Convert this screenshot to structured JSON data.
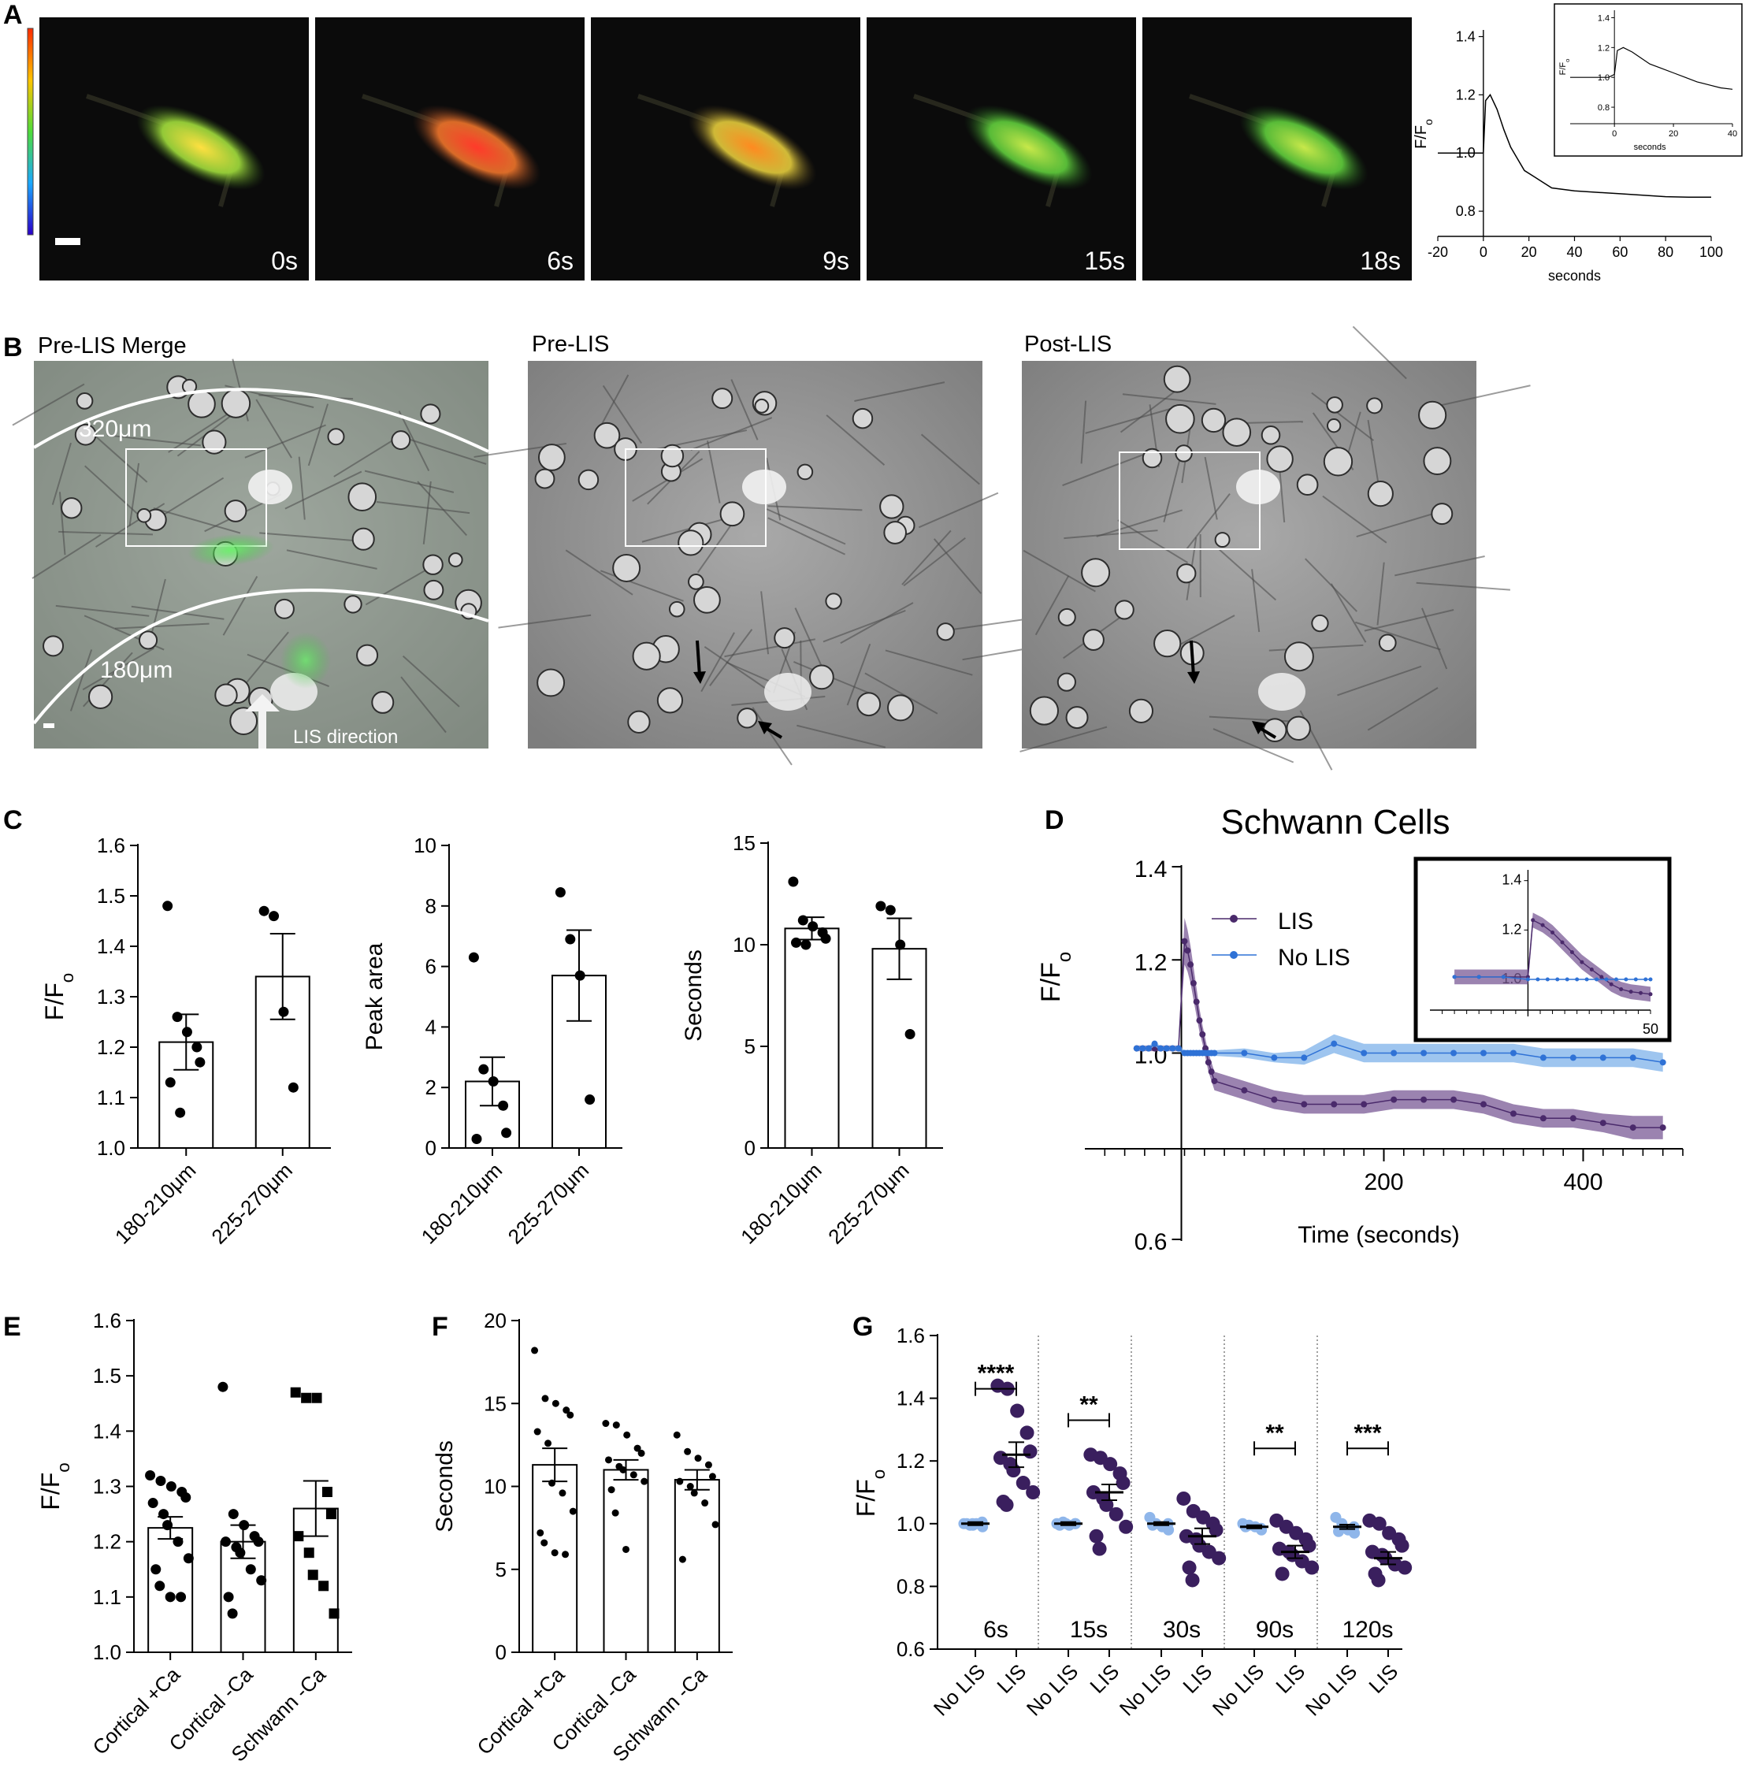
{
  "panels": {
    "A": {
      "letter": "A",
      "frames": [
        "0s",
        "6s",
        "9s",
        "15s",
        "18s"
      ],
      "colors": {
        "frame_bg": "#0b0b0b",
        "cell_green": "#7fd23a",
        "cell_red": "#e23b28",
        "cell_yellow": "#e3c83a"
      }
    },
    "B": {
      "letter": "B",
      "titles": [
        "Pre-LIS  Merge",
        "Pre-LIS",
        "Post-LIS"
      ],
      "arc_labels": [
        "320μm",
        "180μm"
      ],
      "direction_label": "LIS direction",
      "colors": {
        "micro_bg": "#8f8f8f",
        "merge_tint": "#8aa38a"
      }
    },
    "C": {
      "letter": "C"
    },
    "D": {
      "letter": "D"
    },
    "E": {
      "letter": "E"
    },
    "F": {
      "letter": "F"
    },
    "G": {
      "letter": "G"
    }
  },
  "chart_data": [
    {
      "id": "A_trace",
      "type": "line",
      "xlabel": "seconds",
      "ylabel": "F/Fo",
      "xlim": [
        -20,
        100
      ],
      "ylim": [
        0.7,
        1.45
      ],
      "xticks": [
        "-20",
        "0",
        "20",
        "40",
        "60",
        "80",
        "100"
      ],
      "yticks": [
        "0.8",
        "1.0",
        "1.2",
        "1.4"
      ],
      "x": [
        -20,
        -10,
        -2,
        0,
        1,
        3,
        6,
        9,
        12,
        15,
        18,
        22,
        26,
        30,
        40,
        50,
        60,
        70,
        80,
        90,
        100
      ],
      "y": [
        1.0,
        1.0,
        1.0,
        1.0,
        1.18,
        1.2,
        1.15,
        1.08,
        1.02,
        0.98,
        0.94,
        0.92,
        0.9,
        0.88,
        0.87,
        0.865,
        0.86,
        0.855,
        0.85,
        0.848,
        0.848
      ],
      "inset": {
        "xlabel": "seconds",
        "ylabel": "F/Fo",
        "xticks": [
          "0",
          "20",
          "40"
        ],
        "yticks": [
          "0.8",
          "1.0",
          "1.2",
          "1.4"
        ],
        "x": [
          -15,
          -8,
          -2,
          0,
          1,
          3,
          6,
          9,
          12,
          16,
          20,
          24,
          28,
          32,
          36,
          40
        ],
        "y": [
          1.0,
          1.0,
          1.0,
          1.02,
          1.18,
          1.2,
          1.17,
          1.13,
          1.09,
          1.06,
          1.03,
          1.0,
          0.97,
          0.95,
          0.93,
          0.92
        ]
      }
    },
    {
      "id": "C1",
      "type": "bar",
      "ylabel": "F/Fo",
      "ylim": [
        1.0,
        1.6
      ],
      "yticks": [
        "1.0",
        "1.1",
        "1.2",
        "1.3",
        "1.4",
        "1.5",
        "1.6"
      ],
      "categories": [
        "180-210μm",
        "225-270μm"
      ],
      "values": [
        1.21,
        1.34
      ],
      "sem": [
        0.055,
        0.085
      ],
      "points": [
        [
          1.48,
          1.26,
          1.23,
          1.2,
          1.17,
          1.13,
          1.07
        ],
        [
          1.47,
          1.46,
          1.27,
          1.12
        ]
      ]
    },
    {
      "id": "C2",
      "type": "bar",
      "ylabel": "Peak area",
      "ylim": [
        0,
        10
      ],
      "yticks": [
        "0",
        "2",
        "4",
        "6",
        "8",
        "10"
      ],
      "categories": [
        "180-210μm",
        "225-270μm"
      ],
      "values": [
        2.2,
        5.7
      ],
      "sem": [
        0.8,
        1.5
      ],
      "points": [
        [
          6.3,
          2.6,
          2.2,
          1.4,
          0.5,
          0.3
        ],
        [
          8.45,
          6.9,
          5.7,
          1.6
        ]
      ]
    },
    {
      "id": "C3",
      "type": "bar",
      "ylabel": "Seconds",
      "ylim": [
        0,
        15
      ],
      "yticks": [
        "0",
        "5",
        "10",
        "15"
      ],
      "categories": [
        "180-210μm",
        "225-270μm"
      ],
      "values": [
        10.8,
        9.8
      ],
      "sem": [
        0.55,
        1.5
      ],
      "points": [
        [
          13.1,
          11.2,
          10.9,
          10.6,
          10.3,
          10.1,
          10.0
        ],
        [
          11.9,
          11.7,
          10.0,
          5.6
        ]
      ]
    },
    {
      "id": "D",
      "type": "line",
      "title": "Schwann Cells",
      "xlabel": "Time (seconds)",
      "ylabel": "F/Fo",
      "xlim": [
        -100,
        500
      ],
      "ylim": [
        0.6,
        1.4
      ],
      "yticks": [
        "0.6",
        "1.0",
        "1.2",
        "1.4"
      ],
      "xticks": [
        "200",
        "400"
      ],
      "series": [
        {
          "name": "LIS",
          "color": "#4a2a6b",
          "band_color": "#7a5a96",
          "x": [
            -48,
            -42,
            -36,
            -30,
            -24,
            -18,
            -12,
            -6,
            0,
            3,
            6,
            9,
            12,
            15,
            18,
            21,
            24,
            27,
            30,
            60,
            90,
            120,
            150,
            180,
            210,
            240,
            270,
            300,
            330,
            360,
            390,
            420,
            450,
            480
          ],
          "y": [
            1.01,
            1.01,
            1.01,
            1.01,
            1.01,
            1.01,
            1.01,
            1.01,
            1.24,
            1.22,
            1.19,
            1.15,
            1.11,
            1.07,
            1.04,
            1.01,
            0.98,
            0.96,
            0.94,
            0.92,
            0.9,
            0.89,
            0.89,
            0.89,
            0.9,
            0.9,
            0.9,
            0.89,
            0.87,
            0.86,
            0.86,
            0.85,
            0.84,
            0.84
          ],
          "sem": [
            0.006,
            0.006,
            0.006,
            0.006,
            0.006,
            0.006,
            0.006,
            0.006,
            0.05,
            0.045,
            0.04,
            0.035,
            0.03,
            0.025,
            0.02,
            0.02,
            0.02,
            0.02,
            0.02,
            0.02,
            0.02,
            0.02,
            0.02,
            0.02,
            0.02,
            0.02,
            0.02,
            0.02,
            0.02,
            0.02,
            0.02,
            0.02,
            0.025,
            0.025
          ]
        },
        {
          "name": "No LIS",
          "color": "#2f72d6",
          "band_color": "#7eb1ea",
          "x": [
            -48,
            -42,
            -36,
            -30,
            -24,
            -18,
            -12,
            -6,
            0,
            3,
            6,
            9,
            12,
            15,
            18,
            21,
            24,
            27,
            30,
            60,
            90,
            120,
            150,
            180,
            210,
            240,
            270,
            300,
            330,
            360,
            390,
            420,
            450,
            480
          ],
          "y": [
            1.01,
            1.01,
            1.01,
            1.02,
            1.01,
            1.01,
            1.01,
            1.01,
            1.0,
            1.0,
            1.0,
            1.0,
            1.0,
            1.0,
            1.0,
            1.0,
            1.0,
            1.0,
            1.0,
            1.0,
            0.99,
            0.99,
            1.02,
            1.0,
            1.0,
            1.0,
            1.0,
            1.0,
            1.0,
            0.99,
            0.99,
            0.99,
            0.99,
            0.98
          ],
          "sem": [
            0.005,
            0.005,
            0.005,
            0.005,
            0.005,
            0.005,
            0.005,
            0.005,
            0.006,
            0.006,
            0.006,
            0.006,
            0.006,
            0.006,
            0.006,
            0.006,
            0.006,
            0.006,
            0.006,
            0.01,
            0.01,
            0.015,
            0.02,
            0.02,
            0.02,
            0.02,
            0.02,
            0.02,
            0.02,
            0.02,
            0.02,
            0.02,
            0.02,
            0.02
          ]
        }
      ],
      "inset": {
        "xticks": [
          "50"
        ],
        "yticks": [
          "1.0",
          "1.2",
          "1.4"
        ],
        "lis_x": [
          -30,
          -20,
          -10,
          0,
          2,
          6,
          10,
          14,
          18,
          22,
          26,
          30,
          34,
          38,
          42,
          46,
          50
        ],
        "lis_y": [
          1.01,
          1.01,
          1.01,
          1.01,
          1.24,
          1.22,
          1.19,
          1.15,
          1.11,
          1.07,
          1.04,
          1.01,
          0.98,
          0.96,
          0.95,
          0.945,
          0.94
        ],
        "nolis_x": [
          -30,
          -20,
          -10,
          0,
          4,
          8,
          12,
          16,
          20,
          24,
          28,
          32,
          36,
          40,
          44,
          48,
          50
        ],
        "nolis_y": [
          1.01,
          1.01,
          1.01,
          1.0,
          1.0,
          1.0,
          1.0,
          1.0,
          1.0,
          1.0,
          1.0,
          1.0,
          1.0,
          1.0,
          1.0,
          1.0,
          1.0
        ]
      }
    },
    {
      "id": "E",
      "type": "bar",
      "ylabel": "F/Fo",
      "ylim": [
        1.0,
        1.6
      ],
      "yticks": [
        "1.0",
        "1.1",
        "1.2",
        "1.3",
        "1.4",
        "1.5",
        "1.6"
      ],
      "categories": [
        "Cortical +Ca",
        "Cortical -Ca",
        "Schwann -Ca"
      ],
      "values": [
        1.225,
        1.2,
        1.26
      ],
      "sem": [
        0.02,
        0.03,
        0.05
      ],
      "markers": [
        "circle",
        "circle",
        "square"
      ],
      "points": [
        [
          1.32,
          1.31,
          1.3,
          1.29,
          1.28,
          1.27,
          1.25,
          1.23,
          1.2,
          1.17,
          1.15,
          1.12,
          1.1,
          1.1
        ],
        [
          1.48,
          1.25,
          1.23,
          1.21,
          1.2,
          1.2,
          1.19,
          1.18,
          1.15,
          1.13,
          1.1,
          1.07
        ],
        [
          1.47,
          1.46,
          1.46,
          1.29,
          1.25,
          1.21,
          1.18,
          1.14,
          1.12,
          1.07
        ]
      ]
    },
    {
      "id": "F",
      "type": "bar",
      "ylabel": "Seconds",
      "ylim": [
        0,
        20
      ],
      "yticks": [
        "0",
        "5",
        "10",
        "15",
        "20"
      ],
      "categories": [
        "Cortical +Ca",
        "Cortical -Ca",
        "Schwann -Ca"
      ],
      "values": [
        11.3,
        11.0,
        10.4
      ],
      "sem": [
        1.0,
        0.6,
        0.6
      ],
      "points": [
        [
          18.2,
          15.3,
          15.0,
          14.6,
          14.3,
          13.3,
          12.6,
          10.2,
          9.6,
          8.5,
          7.2,
          6.6,
          6.0,
          5.9
        ],
        [
          13.8,
          13.7,
          13.1,
          12.3,
          12.0,
          11.6,
          11.2,
          11.0,
          10.7,
          10.3,
          9.8,
          8.4,
          6.2
        ],
        [
          13.1,
          12.1,
          11.7,
          11.3,
          10.6,
          10.3,
          10.0,
          9.6,
          9.0,
          7.7,
          5.6
        ]
      ]
    },
    {
      "id": "G",
      "type": "scatter",
      "ylabel": "F/Fo",
      "ylim": [
        0.6,
        1.6
      ],
      "yticks": [
        "0.6",
        "0.8",
        "1.0",
        "1.2",
        "1.4",
        "1.6"
      ],
      "categories": [
        "No LIS",
        "LIS",
        "No LIS",
        "LIS",
        "No LIS",
        "LIS",
        "No LIS",
        "LIS",
        "No LIS",
        "LIS"
      ],
      "group_labels": [
        "6s",
        "15s",
        "30s",
        "90s",
        "120s"
      ],
      "significance": [
        "****",
        "**",
        "",
        "**",
        "***"
      ],
      "sig_levels": [
        1.43,
        1.33,
        0,
        1.24,
        1.24
      ],
      "colors": {
        "no_lis": "#8fb6ea",
        "lis": "#3a1f5e"
      },
      "means": [
        1.0,
        1.22,
        1.0,
        1.1,
        1.0,
        0.96,
        0.99,
        0.91,
        0.99,
        0.89
      ],
      "sem": [
        0.005,
        0.04,
        0.005,
        0.025,
        0.005,
        0.025,
        0.005,
        0.02,
        0.007,
        0.02
      ],
      "points": [
        [
          1.0,
          0.995,
          1.0,
          0.99,
          1.005,
          1.0,
          0.995,
          1.0
        ],
        [
          1.44,
          1.43,
          1.36,
          1.29,
          1.23,
          1.21,
          1.19,
          1.17,
          1.13,
          1.1,
          1.07,
          1.06
        ],
        [
          1.0,
          1.005,
          0.995,
          1.0,
          1.0,
          0.995,
          1.0
        ],
        [
          1.22,
          1.21,
          1.19,
          1.16,
          1.13,
          1.1,
          1.08,
          1.06,
          1.03,
          0.99,
          0.96,
          0.92
        ],
        [
          1.02,
          1.0,
          0.99,
          0.98,
          1.0,
          0.995
        ],
        [
          1.08,
          1.04,
          1.02,
          1.0,
          0.98,
          0.96,
          0.95,
          0.93,
          0.91,
          0.89,
          0.86,
          0.82
        ],
        [
          1.0,
          0.995,
          0.99,
          0.98,
          0.985,
          0.99
        ],
        [
          1.01,
          0.99,
          0.97,
          0.95,
          0.93,
          0.92,
          0.91,
          0.9,
          0.88,
          0.86,
          0.84
        ],
        [
          1.02,
          1.0,
          0.98,
          0.97,
          0.99,
          0.975
        ],
        [
          1.01,
          1.0,
          0.97,
          0.95,
          0.93,
          0.91,
          0.9,
          0.89,
          0.87,
          0.86,
          0.84,
          0.82
        ]
      ]
    }
  ]
}
